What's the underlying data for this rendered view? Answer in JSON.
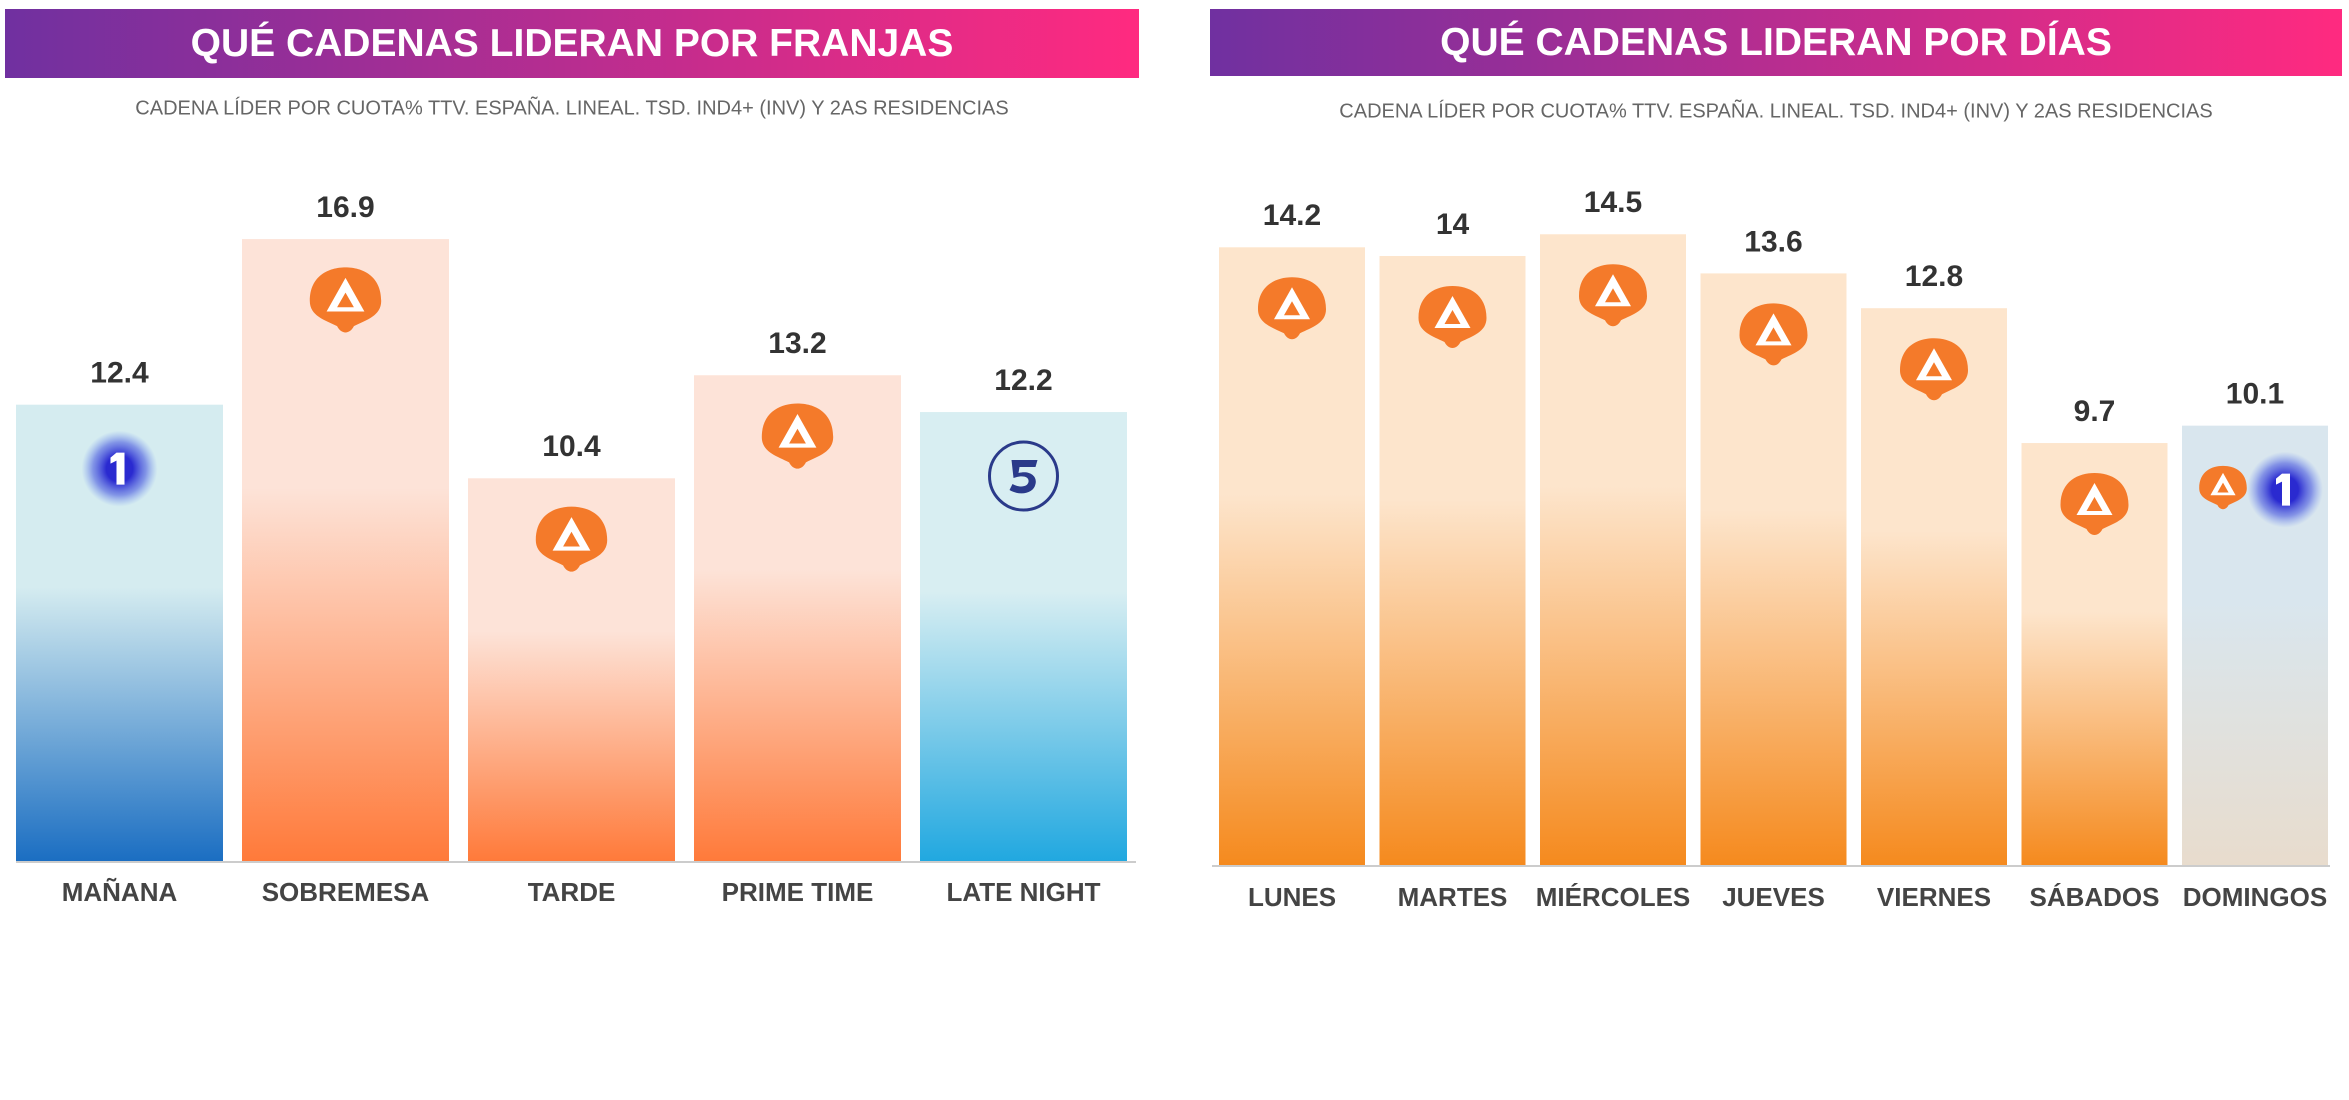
{
  "chart_data": [
    {
      "type": "bar",
      "title": "QUÉ CADENAS LIDERAN POR FRANJAS",
      "subtitle": "CADENA LÍDER POR CUOTA% TTV. ESPAÑA. LINEAL. TSD. IND4+ (INV) Y 2AS RESIDENCIAS",
      "categories": [
        "MAÑANA",
        "SOBREMESA",
        "TARDE",
        "PRIME TIME",
        "LATE NIGHT"
      ],
      "values": [
        12.4,
        16.9,
        10.4,
        13.2,
        12.2
      ],
      "colors": [
        "#1b6ec2",
        "#ff7a3a",
        "#ff7a3a",
        "#ff7a3a",
        "#21a8e0"
      ]
    },
    {
      "type": "bar",
      "title": "QUÉ CADENAS LIDERAN POR DÍAS",
      "subtitle": "CADENA LÍDER POR CUOTA% TTV. ESPAÑA. LINEAL. TSD. IND4+ (INV) Y 2AS RESIDENCIAS",
      "categories": [
        "LUNES",
        "MARTES",
        "MIÉRCOLES",
        "JUEVES",
        "VIERNES",
        "SÁBADOS",
        "DOMINGOS"
      ],
      "values": [
        14.2,
        14.0,
        14.5,
        13.6,
        12.8,
        9.7,
        10.1
      ],
      "colors": [
        "#f58a1e",
        "#f58a1e",
        "#f58a1e",
        "#f58a1e",
        "#f58a1e",
        "#f58a1e",
        "#e8dccd"
      ]
    }
  ]
}
